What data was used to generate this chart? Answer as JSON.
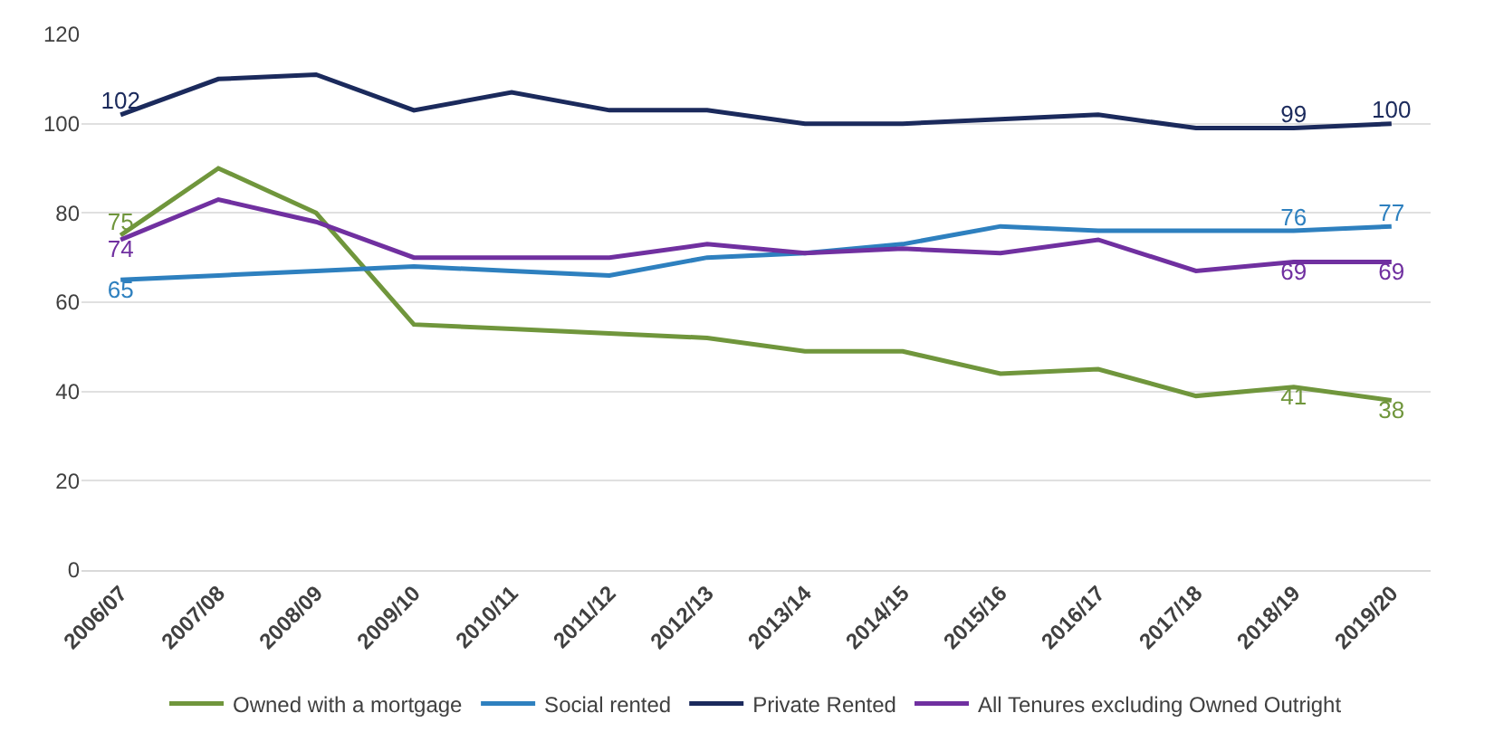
{
  "chart_data": {
    "type": "line",
    "categories": [
      "2006/07",
      "2007/08",
      "2008/09",
      "2009/10",
      "2010/11",
      "2011/12",
      "2012/13",
      "2013/14",
      "2014/15",
      "2015/16",
      "2016/17",
      "2017/18",
      "2018/19",
      "2019/20"
    ],
    "series": [
      {
        "name": "Owned with a mortgage",
        "color": "#70963c",
        "values": [
          75,
          90,
          80,
          55,
          54,
          53,
          52,
          49,
          49,
          44,
          45,
          39,
          41,
          38
        ],
        "value_labels": [
          "75",
          null,
          null,
          null,
          null,
          null,
          null,
          null,
          null,
          null,
          null,
          null,
          "41",
          "38"
        ]
      },
      {
        "name": "Social rented",
        "color": "#2e80bf",
        "values": [
          65,
          66,
          67,
          68,
          67,
          66,
          70,
          71,
          73,
          77,
          76,
          76,
          76,
          77
        ],
        "value_labels": [
          "65",
          null,
          null,
          null,
          null,
          null,
          null,
          null,
          null,
          null,
          null,
          null,
          "76",
          "77"
        ]
      },
      {
        "name": "Private Rented",
        "color": "#1b2a5c",
        "values": [
          102,
          110,
          111,
          103,
          107,
          103,
          103,
          100,
          100,
          101,
          102,
          99,
          99,
          100
        ],
        "value_labels": [
          "102",
          null,
          null,
          null,
          null,
          null,
          null,
          null,
          null,
          null,
          null,
          null,
          "99",
          "100"
        ]
      },
      {
        "name": "All Tenures excluding Owned Outright",
        "color": "#7030a0",
        "values": [
          74,
          83,
          78,
          70,
          70,
          70,
          73,
          71,
          72,
          71,
          74,
          67,
          69,
          69
        ],
        "value_labels": [
          "74",
          null,
          null,
          null,
          null,
          null,
          null,
          null,
          null,
          null,
          null,
          null,
          "69",
          "69"
        ]
      }
    ],
    "ylim": [
      0,
      120
    ],
    "yticks": [
      0,
      20,
      40,
      60,
      80,
      100,
      120
    ],
    "grid": "y",
    "legend": "bottom",
    "marker": "none",
    "line_style": "solid"
  }
}
